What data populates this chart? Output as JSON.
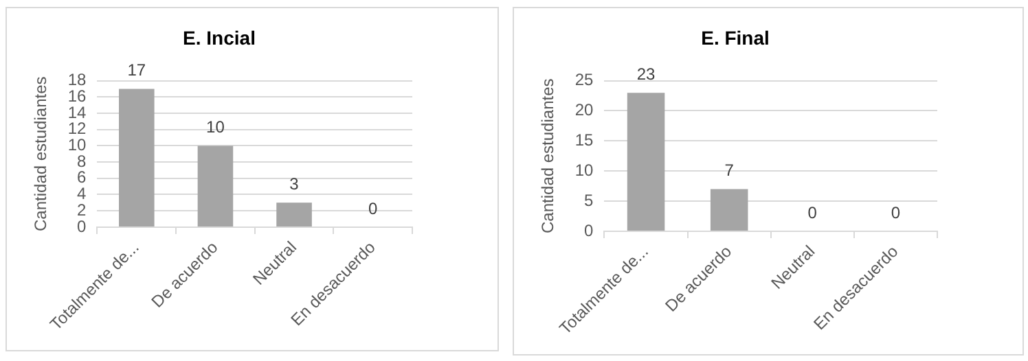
{
  "chart_data": [
    {
      "type": "bar",
      "title": "E. Incial",
      "ylabel": "Cantidad estudiantes",
      "categories": [
        "Totalmente de...",
        "De acuerdo",
        "Neutral",
        "En desacuerdo"
      ],
      "values": [
        17,
        10,
        3,
        0
      ],
      "color": "#a5a5a5",
      "ylim": [
        0,
        18
      ],
      "yticks": [
        0,
        2,
        4,
        6,
        8,
        10,
        12,
        14,
        16,
        18
      ],
      "grid": "y",
      "data_labels": true,
      "legend": false
    },
    {
      "type": "bar",
      "title": "E. Final",
      "ylabel": "Cantidad estudiantes",
      "categories": [
        "Totalmente de...",
        "De acuerdo",
        "Neutral",
        "En desacuerdo"
      ],
      "values": [
        23,
        7,
        0,
        0
      ],
      "color": "#a5a5a5",
      "ylim": [
        0,
        25
      ],
      "yticks": [
        0,
        5,
        10,
        15,
        20,
        25
      ],
      "grid": "y",
      "data_labels": true,
      "legend": false
    }
  ]
}
